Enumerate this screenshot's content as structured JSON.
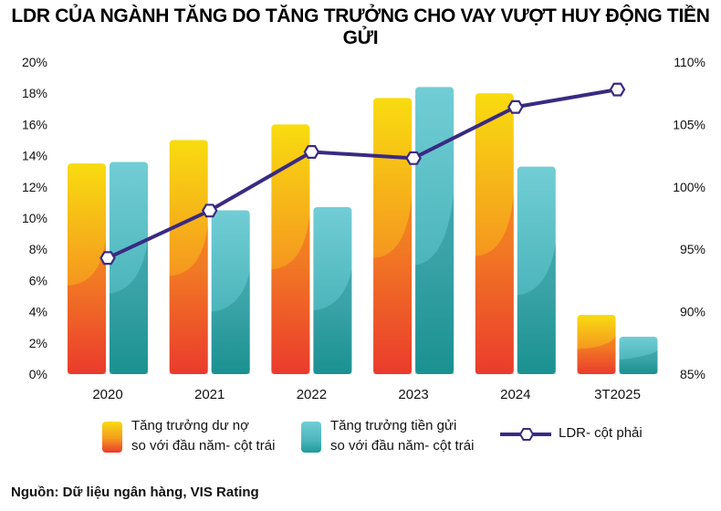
{
  "title": "LDR CỦA NGÀNH TĂNG DO TĂNG TRƯỞNG CHO VAY VƯỢT HUY ĐỘNG TIỀN GỬI",
  "source": "Nguồn: Dữ liệu ngân hàng, VIS Rating",
  "colors": {
    "series_orange_top": "#f6d312",
    "series_orange_bottom": "#ec3a2c",
    "series_teal_top": "#6fcbd3",
    "series_teal_bottom": "#1e9a98",
    "line": "#3a2a82",
    "marker_fill": "#ffffff"
  },
  "legend": {
    "credit_line1": "Tăng trưởng dư nợ",
    "credit_line2": "so với đầu năm- cột trái",
    "deposit_line1": "Tăng trưởng tiền gửi",
    "deposit_line2": "so với đầu năm- cột trái",
    "ldr": "LDR- cột phải"
  },
  "chart_data": {
    "type": "bar",
    "categories": [
      "2020",
      "2021",
      "2022",
      "2023",
      "2024",
      "3T2025"
    ],
    "series": [
      {
        "name": "Tăng trưởng dư nợ so với đầu năm- cột trái",
        "type": "bar",
        "axis": "left",
        "values": [
          13.5,
          15.0,
          16.0,
          17.7,
          18.0,
          3.8
        ]
      },
      {
        "name": "Tăng trưởng tiền gửi so với đầu năm- cột trái",
        "type": "bar",
        "axis": "left",
        "values": [
          13.6,
          10.5,
          10.7,
          18.4,
          13.3,
          2.4
        ]
      },
      {
        "name": "LDR- cột phải",
        "type": "line",
        "axis": "right",
        "values": [
          94.3,
          98.1,
          102.8,
          102.3,
          106.4,
          107.8
        ]
      }
    ],
    "left_axis": {
      "min": 0,
      "max": 20,
      "step": 2,
      "tick_labels": [
        "0%",
        "2%",
        "4%",
        "6%",
        "8%",
        "10%",
        "12%",
        "14%",
        "16%",
        "18%",
        "20%"
      ]
    },
    "right_axis": {
      "min": 85,
      "max": 110,
      "step": 5,
      "tick_labels": [
        "85%",
        "90%",
        "95%",
        "100%",
        "105%",
        "110%"
      ]
    },
    "grid": false,
    "legend_position": "bottom"
  }
}
